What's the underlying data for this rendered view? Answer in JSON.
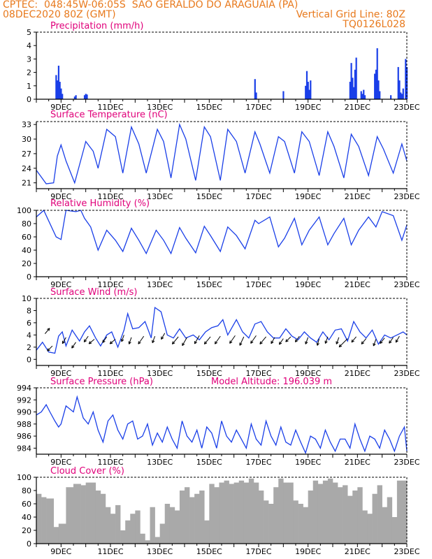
{
  "header": {
    "line1": "CPTEC:  048:45W-06:05S  SAO GERALDO DO ARAGUAIA (PA)",
    "line2_left": "08DEC2020 80Z (GMT)",
    "line2_right": "Vertical Grid Line: 80Z",
    "line3_right": "TQ0126L028"
  },
  "colors": {
    "header": "#e8791c",
    "title": "#e0007a",
    "series": "#1a3fe8",
    "cloud": "#a9a9a9"
  },
  "x_ticks": [
    "9DEC",
    "11DEC",
    "13DEC",
    "15DEC",
    "17DEC",
    "19DEC",
    "21DEC",
    "23DEC"
  ],
  "x_tick_days": [
    9,
    11,
    13,
    15,
    17,
    19,
    21,
    23
  ],
  "chart_data": [
    {
      "type": "bar",
      "title": "Precipitation (mm/h)",
      "ylim": [
        0,
        5
      ],
      "yticks": [
        0,
        1,
        2,
        3,
        4,
        5
      ],
      "x": [
        8.8,
        8.85,
        8.9,
        8.95,
        9.0,
        9.05,
        9.55,
        9.6,
        9.95,
        10.0,
        10.05,
        16.85,
        16.9,
        18.0,
        18.9,
        18.95,
        19.0,
        19.05,
        19.1,
        20.7,
        20.75,
        20.8,
        20.85,
        20.9,
        20.95,
        21.15,
        21.2,
        21.25,
        21.3,
        21.7,
        21.75,
        21.8,
        21.85,
        21.9,
        22.35,
        22.65,
        22.7,
        22.75,
        22.8,
        22.85,
        22.95,
        23.0
      ],
      "values": [
        1.8,
        1.4,
        2.5,
        1.3,
        0.8,
        0.4,
        0.2,
        0.3,
        0.3,
        0.4,
        0.35,
        1.5,
        0.5,
        0.6,
        1.0,
        2.1,
        1.3,
        0.7,
        1.4,
        1.3,
        2.7,
        1.6,
        0.9,
        2.2,
        3.1,
        0.6,
        0.4,
        0.7,
        0.3,
        1.9,
        2.2,
        3.8,
        1.4,
        0.6,
        0.3,
        2.4,
        1.4,
        0.5,
        0.4,
        0.8,
        3.0,
        2.4
      ]
    },
    {
      "type": "line",
      "title": "Surface Temperature (nC)",
      "ylim": [
        19.8,
        33.6
      ],
      "yticks": [
        21,
        24,
        27,
        30,
        33
      ],
      "x": [
        8,
        8.4,
        8.7,
        8.85,
        9.0,
        9.2,
        9.55,
        9.95,
        10.0,
        10.3,
        10.5,
        10.85,
        11.2,
        11.5,
        11.85,
        12.15,
        12.45,
        12.9,
        13.15,
        13.45,
        13.8,
        14.05,
        14.45,
        14.8,
        15.05,
        15.45,
        15.75,
        16.1,
        16.45,
        16.85,
        17.05,
        17.45,
        17.8,
        18.05,
        18.45,
        18.75,
        19.05,
        19.45,
        19.8,
        20.05,
        20.45,
        20.75,
        21.05,
        21.45,
        21.8,
        22.05,
        22.45,
        22.8,
        23.0
      ],
      "values": [
        23.6,
        20.8,
        21.0,
        26.5,
        28.8,
        25.5,
        21.0,
        28.5,
        29.5,
        27.5,
        24.0,
        32.0,
        30.5,
        23.0,
        32.5,
        29.0,
        23.0,
        32.0,
        29.5,
        22.0,
        33.0,
        30.0,
        21.5,
        32.5,
        30.5,
        21.5,
        32.0,
        29.5,
        23.0,
        31.5,
        29.0,
        23.0,
        30.5,
        29.5,
        23.0,
        31.5,
        29.5,
        22.5,
        31.5,
        28.5,
        22.0,
        31.0,
        28.5,
        22.5,
        30.5,
        28.0,
        23.0,
        29.0,
        25.5
      ]
    },
    {
      "type": "line",
      "title": "Relative Humidity (%)",
      "ylim": [
        0,
        100
      ],
      "yticks": [
        0,
        20,
        40,
        60,
        80,
        100
      ],
      "x": [
        8,
        8.3,
        8.8,
        9.0,
        9.2,
        9.6,
        9.8,
        9.95,
        10.2,
        10.5,
        10.85,
        11.2,
        11.5,
        11.85,
        12.15,
        12.45,
        12.85,
        13.15,
        13.45,
        13.8,
        14.05,
        14.45,
        14.8,
        15.05,
        15.45,
        15.75,
        16.1,
        16.45,
        16.85,
        17.0,
        17.45,
        17.8,
        18.05,
        18.45,
        18.75,
        19.05,
        19.45,
        19.8,
        20.05,
        20.45,
        20.75,
        21.05,
        21.45,
        21.75,
        22.0,
        22.45,
        22.8,
        23.0
      ],
      "values": [
        90,
        100,
        60,
        56,
        100,
        98,
        100,
        88,
        75,
        40,
        70,
        55,
        38,
        73,
        55,
        35,
        70,
        55,
        35,
        74,
        58,
        36,
        76,
        62,
        38,
        75,
        62,
        42,
        85,
        80,
        90,
        45,
        58,
        88,
        48,
        70,
        90,
        48,
        65,
        88,
        48,
        70,
        90,
        75,
        98,
        92,
        55,
        78
      ]
    },
    {
      "type": "line",
      "title": "Surface Wind (m/s)",
      "ylim": [
        -1,
        10
      ],
      "yticks": [
        0,
        2,
        4,
        6,
        8,
        10
      ],
      "x": [
        8,
        8.25,
        8.5,
        8.75,
        8.9,
        9.05,
        9.2,
        9.45,
        9.75,
        9.95,
        10.15,
        10.4,
        10.6,
        10.85,
        11.05,
        11.3,
        11.55,
        11.7,
        11.9,
        12.15,
        12.4,
        12.65,
        12.8,
        13.05,
        13.3,
        13.55,
        13.8,
        14.05,
        14.35,
        14.6,
        14.85,
        15.1,
        15.35,
        15.55,
        15.75,
        16.1,
        16.35,
        16.6,
        16.85,
        17.1,
        17.35,
        17.6,
        17.85,
        18.1,
        18.35,
        18.6,
        18.85,
        19.1,
        19.35,
        19.6,
        19.85,
        20.1,
        20.35,
        20.6,
        20.85,
        21.1,
        21.35,
        21.6,
        21.85,
        22.1,
        22.35,
        22.6,
        22.85,
        23.0
      ],
      "values": [
        1.5,
        2.8,
        1.2,
        1.0,
        3.8,
        4.5,
        2.2,
        4.8,
        3.0,
        4.5,
        5.5,
        3.5,
        2.2,
        4.0,
        4.5,
        2.0,
        4.8,
        7.5,
        5.0,
        5.2,
        6.2,
        3.5,
        8.5,
        7.8,
        4.0,
        3.5,
        5.0,
        3.5,
        4.0,
        3.2,
        4.5,
        5.2,
        5.5,
        6.5,
        4.0,
        6.5,
        4.5,
        3.5,
        5.8,
        6.2,
        4.5,
        3.5,
        3.5,
        5.0,
        3.8,
        3.2,
        4.5,
        3.5,
        2.8,
        4.5,
        3.2,
        4.8,
        5.0,
        3.0,
        6.2,
        4.5,
        3.5,
        4.8,
        2.5,
        4.0,
        3.5,
        4.0,
        4.5,
        4.0
      ]
    },
    {
      "type": "line",
      "title": "Surface Pressure (hPa)",
      "annotation": "Model Altitude: 196.039 m",
      "ylim": [
        983,
        994
      ],
      "yticks": [
        984,
        986,
        988,
        990,
        992,
        994
      ],
      "x": [
        8,
        8.2,
        8.4,
        8.55,
        8.75,
        8.9,
        9.0,
        9.2,
        9.5,
        9.65,
        9.9,
        10.1,
        10.3,
        10.5,
        10.7,
        10.9,
        11.1,
        11.3,
        11.5,
        11.7,
        11.9,
        12.1,
        12.3,
        12.5,
        12.7,
        12.9,
        13.1,
        13.3,
        13.5,
        13.7,
        13.9,
        14.1,
        14.3,
        14.5,
        14.7,
        14.9,
        15.1,
        15.3,
        15.5,
        15.7,
        15.9,
        16.1,
        16.3,
        16.5,
        16.7,
        16.9,
        17.1,
        17.3,
        17.5,
        17.7,
        17.9,
        18.1,
        18.3,
        18.5,
        18.7,
        18.9,
        19.1,
        19.3,
        19.5,
        19.7,
        19.9,
        20.1,
        20.3,
        20.5,
        20.7,
        20.9,
        21.1,
        21.3,
        21.5,
        21.7,
        21.9,
        22.1,
        22.3,
        22.5,
        22.7,
        22.9,
        23.0
      ],
      "values": [
        989.5,
        990.0,
        991.2,
        990.0,
        988.5,
        987.5,
        988.0,
        991.0,
        990.0,
        992.5,
        989.0,
        988.0,
        990.0,
        987.0,
        985.0,
        988.5,
        989.5,
        987.0,
        985.5,
        988.0,
        988.5,
        985.5,
        986.0,
        988.0,
        984.5,
        986.5,
        985.0,
        987.5,
        985.5,
        984.0,
        988.5,
        986.0,
        985.0,
        987.0,
        984.0,
        987.5,
        986.5,
        984.0,
        988.5,
        986.0,
        985.0,
        987.0,
        985.5,
        984.0,
        988.0,
        985.5,
        984.5,
        988.5,
        986.0,
        984.5,
        987.5,
        985.0,
        984.5,
        987.0,
        985.0,
        983.2,
        986.0,
        985.5,
        984.0,
        987.0,
        985.0,
        983.5,
        985.5,
        985.5,
        984.0,
        988.0,
        985.5,
        983.5,
        986.0,
        985.5,
        984.0,
        987.0,
        985.5,
        983.5,
        986.0,
        987.5,
        983.5
      ]
    },
    {
      "type": "area",
      "title": "Cloud Cover (%)",
      "ylim": [
        0,
        100
      ],
      "yticks": [
        0,
        20,
        40,
        60,
        80,
        100
      ],
      "x": [
        8,
        8.2,
        8.4,
        8.7,
        8.9,
        9.2,
        9.5,
        9.8,
        10.0,
        10.2,
        10.4,
        10.6,
        10.8,
        11.0,
        11.2,
        11.4,
        11.6,
        11.8,
        12.0,
        12.2,
        12.4,
        12.6,
        12.8,
        13.0,
        13.2,
        13.4,
        13.6,
        13.8,
        14.0,
        14.2,
        14.4,
        14.6,
        14.8,
        15.0,
        15.2,
        15.4,
        15.6,
        15.8,
        16.0,
        16.2,
        16.4,
        16.6,
        16.8,
        17.0,
        17.2,
        17.4,
        17.6,
        17.8,
        18.0,
        18.2,
        18.4,
        18.6,
        18.8,
        19.0,
        19.2,
        19.4,
        19.6,
        19.8,
        20.0,
        20.2,
        20.4,
        20.6,
        20.8,
        21.0,
        21.2,
        21.4,
        21.6,
        21.8,
        22.0,
        22.2,
        22.4,
        22.6,
        22.8,
        23.0
      ],
      "values": [
        75,
        70,
        68,
        25,
        30,
        85,
        90,
        88,
        92,
        92,
        80,
        75,
        55,
        45,
        58,
        20,
        35,
        45,
        50,
        15,
        5,
        55,
        10,
        30,
        60,
        55,
        50,
        80,
        85,
        70,
        75,
        80,
        35,
        90,
        85,
        92,
        95,
        90,
        92,
        95,
        92,
        98,
        92,
        80,
        65,
        60,
        85,
        98,
        92,
        92,
        65,
        60,
        55,
        80,
        95,
        90,
        95,
        98,
        92,
        85,
        88,
        72,
        80,
        85,
        50,
        45,
        75,
        88,
        55,
        70,
        40,
        95,
        95,
        92
      ]
    }
  ]
}
